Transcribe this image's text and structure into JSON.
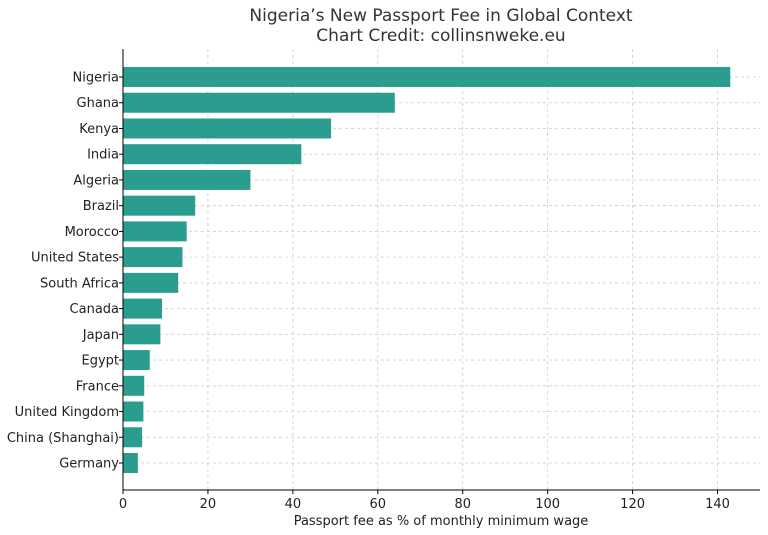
{
  "chart_data": {
    "type": "bar",
    "orientation": "horizontal",
    "title": "Nigeria’s New Passport Fee in Global Context",
    "subtitle": "Chart Credit: collinsnweke.eu",
    "xlabel": "Passport fee as % of monthly minimum wage",
    "ylabel": "",
    "xlim": [
      0,
      150
    ],
    "xticks": [
      0,
      20,
      40,
      60,
      80,
      100,
      120,
      140
    ],
    "grid": true,
    "bar_color": "#2a9d8f",
    "categories": [
      "Nigeria",
      "Ghana",
      "Kenya",
      "India",
      "Algeria",
      "Brazil",
      "Morocco",
      "United States",
      "South Africa",
      "Canada",
      "Japan",
      "Egypt",
      "France",
      "United Kingdom",
      "China (Shanghai)",
      "Germany"
    ],
    "values": [
      143,
      64,
      49,
      42,
      30,
      17,
      15,
      14,
      13,
      9.2,
      8.8,
      6.3,
      5,
      4.8,
      4.5,
      3.5
    ]
  }
}
